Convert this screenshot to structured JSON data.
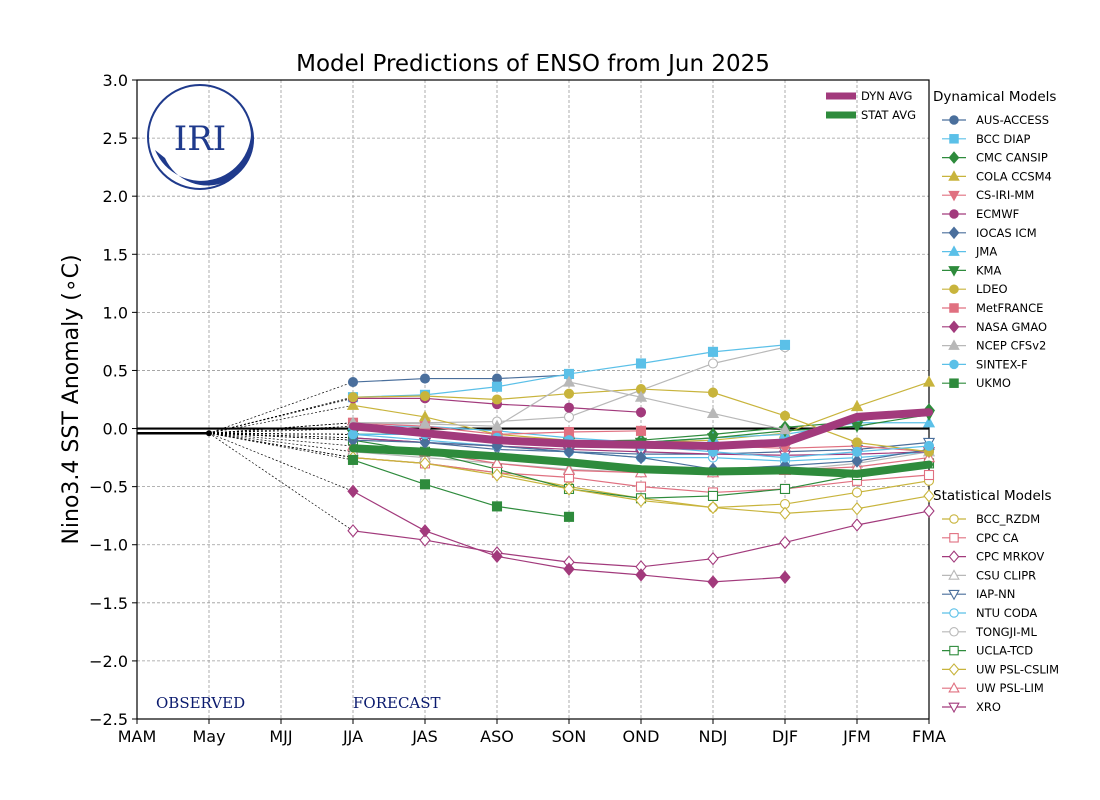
{
  "chart_data": {
    "type": "line",
    "title": "Model Predictions of ENSO from Jun 2025",
    "ylabel": "Nino3.4 SST Anomaly (∘C)",
    "xlabel": "",
    "categories": [
      "MAM",
      "May",
      "MJJ",
      "JJA",
      "JAS",
      "ASO",
      "SON",
      "OND",
      "NDJ",
      "DJF",
      "JFM",
      "FMA"
    ],
    "yticks": [
      "−2.5",
      "−2.0",
      "−1.5",
      "−1.0",
      "−0.5",
      "0.0",
      "0.5",
      "1.0",
      "1.5",
      "2.0",
      "2.5",
      "3.0"
    ],
    "ylim": [
      -2.5,
      3.0
    ],
    "grid": true,
    "observed": [
      [
        0,
        -0.04
      ],
      [
        1,
        -0.04
      ]
    ],
    "observed_label": "OBSERVED",
    "forecast_label": "FORECAST",
    "logo_text": "IRI",
    "dynamical_heading": "Dynamical Models",
    "statistical_heading": "Statistical Models",
    "averages": [
      {
        "name": "DYN AVG",
        "color": "#a23a7c",
        "values": [
          0.02,
          -0.04,
          -0.1,
          -0.13,
          -0.14,
          -0.15,
          -0.12,
          0.1,
          0.14
        ]
      },
      {
        "name": "STAT AVG",
        "color": "#2e8b3c",
        "values": [
          -0.17,
          -0.2,
          -0.24,
          -0.29,
          -0.35,
          -0.37,
          -0.36,
          -0.39,
          -0.31
        ]
      }
    ],
    "dynamical": [
      {
        "name": "AUS-ACCESS",
        "color": "#4a6f9c",
        "marker": "circle",
        "values": [
          0.4,
          0.43,
          0.43,
          0.46,
          null,
          null,
          null,
          null,
          null
        ]
      },
      {
        "name": "BCC DIAP",
        "color": "#5bc0e8",
        "marker": "square",
        "values": [
          0.27,
          0.29,
          0.36,
          0.47,
          0.56,
          0.66,
          0.72,
          null,
          null
        ]
      },
      {
        "name": "CMC CANSIP",
        "color": "#2e8b3c",
        "marker": "diamond",
        "values": [
          -0.05,
          -0.05,
          -0.1,
          -0.11,
          -0.1,
          -0.05,
          0.01,
          0.06,
          0.16
        ]
      },
      {
        "name": "COLA CCSM4",
        "color": "#c8b43c",
        "marker": "triangle",
        "values": [
          0.2,
          0.1,
          -0.05,
          -0.1,
          -0.12,
          -0.1,
          -0.04,
          0.19,
          0.4
        ]
      },
      {
        "name": "CS-IRI-MM",
        "color": "#e07080",
        "marker": "triangle-down",
        "values": [
          0.0,
          -0.05,
          -0.1,
          -0.11,
          -0.12,
          -0.15,
          -0.17,
          -0.15,
          -0.2
        ]
      },
      {
        "name": "ECMWF",
        "color": "#a23a7c",
        "marker": "circle",
        "values": [
          0.26,
          0.26,
          0.21,
          0.18,
          0.14,
          null,
          null,
          null,
          null
        ]
      },
      {
        "name": "IOCAS ICM",
        "color": "#4a6f9c",
        "marker": "diamond",
        "values": [
          -0.1,
          -0.12,
          -0.15,
          -0.2,
          -0.25,
          -0.35,
          -0.32,
          -0.28,
          -0.18
        ]
      },
      {
        "name": "JMA",
        "color": "#5bc0e8",
        "marker": "triangle",
        "values": [
          0.02,
          0.02,
          -0.02,
          -0.08,
          -0.12,
          -0.08,
          -0.05,
          0.05,
          0.05
        ]
      },
      {
        "name": "KMA",
        "color": "#2e8b3c",
        "marker": "triangle-down",
        "values": [
          -0.05,
          -0.05,
          -0.08,
          -0.12,
          -0.12,
          -0.08,
          -0.02,
          0.02,
          0.12
        ]
      },
      {
        "name": "LDEO",
        "color": "#c8b43c",
        "marker": "circle",
        "values": [
          0.27,
          0.28,
          0.25,
          0.3,
          0.34,
          0.31,
          0.11,
          -0.12,
          -0.2
        ]
      },
      {
        "name": "MetFRANCE",
        "color": "#e07080",
        "marker": "square",
        "values": [
          0.05,
          0.02,
          -0.05,
          -0.03,
          -0.02,
          null,
          null,
          null,
          null
        ]
      },
      {
        "name": "NASA GMAO",
        "color": "#a23a7c",
        "marker": "diamond",
        "values": [
          -0.54,
          -0.88,
          -1.1,
          -1.21,
          -1.26,
          -1.32,
          -1.28,
          null,
          null
        ]
      },
      {
        "name": "NCEP CFSv2",
        "color": "#b8b8b8",
        "marker": "triangle",
        "values": [
          0.05,
          0.04,
          0.02,
          0.4,
          0.27,
          0.13,
          -0.01,
          null,
          null
        ]
      },
      {
        "name": "SINTEX-F",
        "color": "#5bc0e8",
        "marker": "circle",
        "values": [
          -0.05,
          -0.05,
          -0.08,
          -0.1,
          -0.15,
          -0.2,
          -0.25,
          -0.2,
          -0.15
        ]
      },
      {
        "name": "UKMO",
        "color": "#2e8b3c",
        "marker": "square",
        "values": [
          -0.27,
          -0.48,
          -0.67,
          -0.76,
          null,
          null,
          null,
          null,
          null
        ]
      }
    ],
    "statistical": [
      {
        "name": "BCC_RZDM",
        "color": "#c8b43c",
        "marker": "circle",
        "values": [
          -0.25,
          -0.3,
          -0.38,
          -0.5,
          -0.6,
          -0.68,
          -0.65,
          -0.55,
          -0.45
        ]
      },
      {
        "name": "CPC CA",
        "color": "#e07080",
        "marker": "square",
        "values": [
          -0.25,
          -0.3,
          -0.38,
          -0.42,
          -0.5,
          -0.55,
          -0.52,
          -0.45,
          -0.4
        ]
      },
      {
        "name": "CPC MRKOV",
        "color": "#a23a7c",
        "marker": "diamond",
        "values": [
          -0.88,
          -0.96,
          -1.07,
          -1.15,
          -1.19,
          -1.12,
          -0.98,
          -0.83,
          -0.71
        ]
      },
      {
        "name": "CSU CLIPR",
        "color": "#b8b8b8",
        "marker": "triangle",
        "values": [
          -0.2,
          -0.25,
          -0.3,
          -0.35,
          -0.38,
          -0.38,
          -0.36,
          -0.3,
          -0.2
        ]
      },
      {
        "name": "IAP-NN",
        "color": "#4a6f9c",
        "marker": "triangle-down",
        "values": [
          -0.08,
          -0.12,
          -0.18,
          -0.2,
          -0.22,
          -0.22,
          -0.2,
          -0.18,
          -0.12
        ]
      },
      {
        "name": "NTU CODA",
        "color": "#5bc0e8",
        "marker": "circle",
        "values": [
          -0.05,
          -0.1,
          -0.15,
          -0.2,
          -0.25,
          -0.25,
          -0.28,
          -0.25,
          -0.2
        ]
      },
      {
        "name": "TONGJI-ML",
        "color": "#b8b8b8",
        "marker": "circle",
        "values": [
          0.05,
          0.05,
          0.06,
          0.1,
          0.33,
          0.56,
          0.7,
          null,
          null
        ]
      },
      {
        "name": "UCLA-TCD",
        "color": "#2e8b3c",
        "marker": "square",
        "values": [
          -0.1,
          -0.2,
          -0.35,
          -0.52,
          -0.6,
          -0.58,
          -0.52,
          -0.4,
          -0.3
        ]
      },
      {
        "name": "UW PSL-CSLIM",
        "color": "#c8b43c",
        "marker": "diamond",
        "values": [
          -0.25,
          -0.3,
          -0.4,
          -0.52,
          -0.62,
          -0.68,
          -0.73,
          -0.69,
          -0.58
        ]
      },
      {
        "name": "UW PSL-LIM",
        "color": "#e07080",
        "marker": "triangle",
        "values": [
          -0.15,
          -0.2,
          -0.3,
          -0.36,
          -0.38,
          -0.38,
          -0.36,
          -0.33,
          -0.25
        ]
      },
      {
        "name": "XRO",
        "color": "#a23a7c",
        "marker": "triangle-down",
        "values": [
          -0.08,
          -0.12,
          -0.15,
          -0.18,
          -0.2,
          -0.22,
          -0.23,
          -0.22,
          -0.2
        ]
      }
    ]
  }
}
